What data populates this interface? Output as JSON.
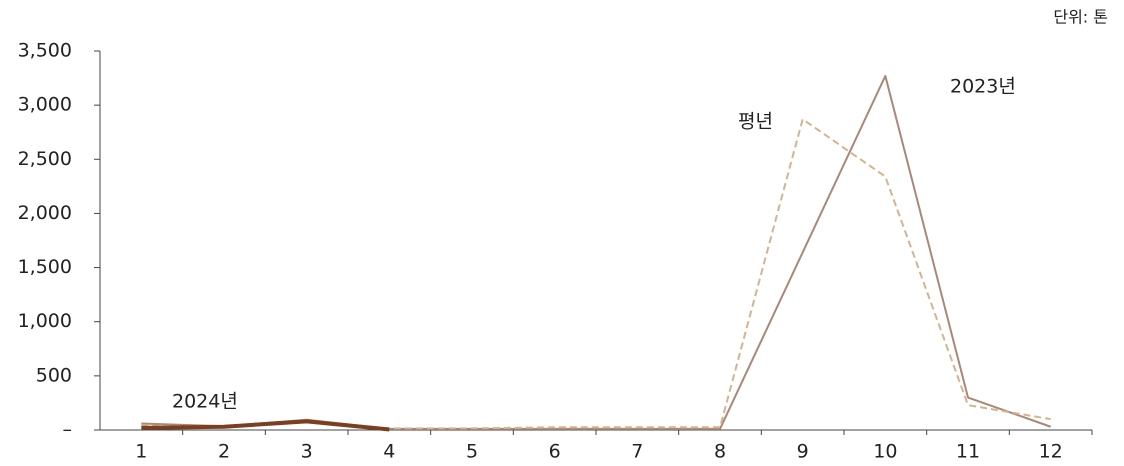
{
  "chart_data": {
    "type": "line",
    "unit_label": "단위: 톤",
    "categories": [
      "1",
      "2",
      "3",
      "4",
      "5",
      "6",
      "7",
      "8",
      "9",
      "10",
      "11",
      "12"
    ],
    "series": [
      {
        "name": "2023년",
        "color": "#a98878",
        "style": "solid",
        "width": 2,
        "values": [
          60,
          35,
          95,
          10,
          10,
          10,
          10,
          10,
          1640,
          3270,
          300,
          30
        ]
      },
      {
        "name": "평년",
        "color": "#d6b28e",
        "style": "dashed",
        "width": 2,
        "values": [
          40,
          30,
          80,
          15,
          15,
          25,
          25,
          25,
          2870,
          2340,
          230,
          100
        ]
      },
      {
        "name": "2024년",
        "color": "#7b3f1f",
        "style": "solid",
        "width": 4,
        "values": [
          20,
          30,
          80,
          5,
          null,
          null,
          null,
          null,
          null,
          null,
          null,
          null
        ]
      }
    ],
    "ylim": [
      0,
      3500
    ],
    "yticks": [
      {
        "value": 0,
        "label": "–"
      },
      500,
      {
        "value": 1000,
        "label": "1,000"
      },
      {
        "value": 1500,
        "label": "1,500"
      },
      {
        "value": 2000,
        "label": "2,000"
      },
      {
        "value": 2500,
        "label": "2,500"
      },
      {
        "value": 3000,
        "label": "3,000"
      },
      {
        "value": 3500,
        "label": "3,500"
      }
    ]
  }
}
